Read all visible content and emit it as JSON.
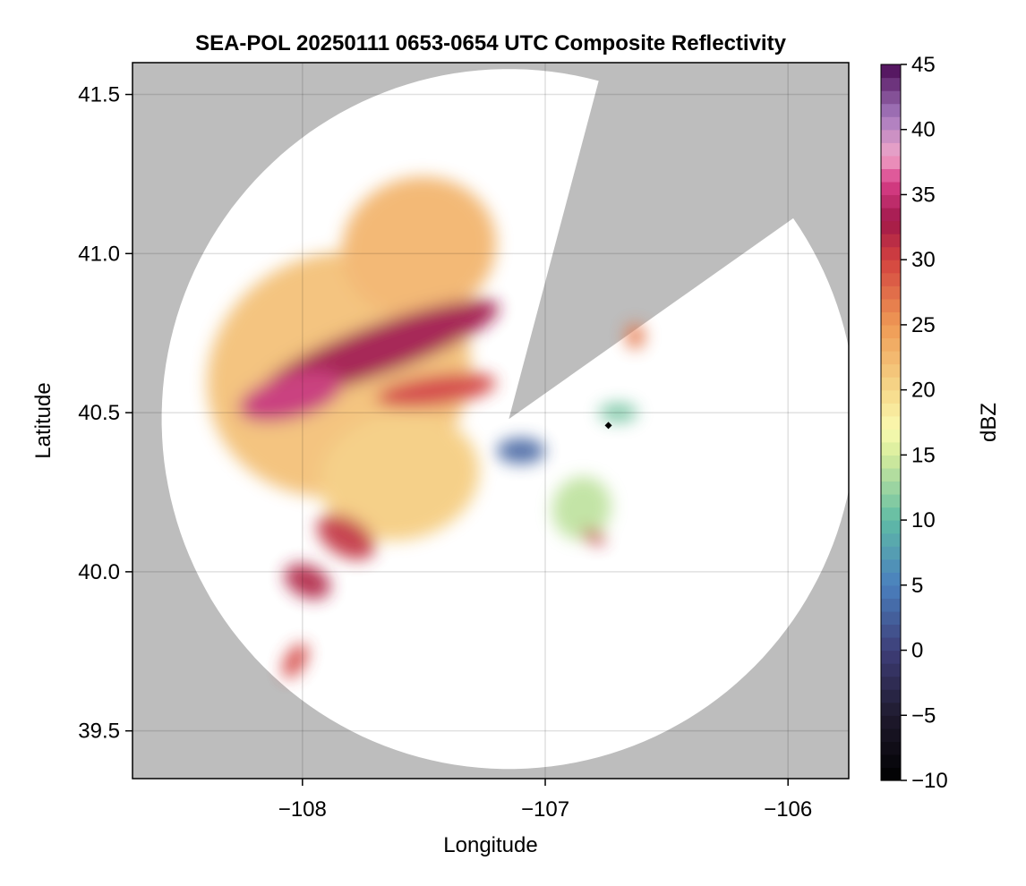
{
  "chart_data": {
    "type": "heatmap",
    "title": "SEA-POL 20250111 0653-0654 UTC Composite Reflectivity",
    "xlabel": "Longitude",
    "ylabel": "Latitude",
    "xlim": [
      -108.7,
      -105.75
    ],
    "ylim": [
      39.35,
      41.6
    ],
    "xticks": [
      -108,
      -107,
      -106
    ],
    "xtick_labels": [
      "−108",
      "−107",
      "−106"
    ],
    "yticks": [
      39.5,
      40.0,
      40.5,
      41.0,
      41.5
    ],
    "ytick_labels": [
      "39.5",
      "40.0",
      "40.5",
      "41.0",
      "41.5"
    ],
    "grid": true,
    "background_color": "#bdbdbd",
    "radar": {
      "center_lon": -107.15,
      "center_lat": 40.48,
      "range_lon": 1.43,
      "range_lat": 1.1,
      "blocked_sectors_deg_from_north": [
        [
          15,
          55
        ]
      ],
      "coverage_color": "#ffffff"
    },
    "marker": {
      "lon": -106.74,
      "lat": 40.46
    },
    "colorbar": {
      "label": "dBZ",
      "min": -10,
      "max": 45,
      "ticks": [
        -10,
        -5,
        0,
        5,
        10,
        15,
        20,
        25,
        30,
        35,
        40,
        45
      ],
      "tick_labels": [
        "−10",
        "−5",
        "0",
        "5",
        "10",
        "15",
        "20",
        "25",
        "30",
        "35",
        "40",
        "45"
      ],
      "colormap": "spectral-extended",
      "stops": [
        {
          "v": -10,
          "c": "#000000"
        },
        {
          "v": -5,
          "c": "#1f1a2e"
        },
        {
          "v": 0,
          "c": "#3e3e78"
        },
        {
          "v": 5,
          "c": "#4a7fbe"
        },
        {
          "v": 10,
          "c": "#5fbba5"
        },
        {
          "v": 15,
          "c": "#d6ec9c"
        },
        {
          "v": 17,
          "c": "#fafab0"
        },
        {
          "v": 20,
          "c": "#f6d88a"
        },
        {
          "v": 25,
          "c": "#ef9a55"
        },
        {
          "v": 30,
          "c": "#d3423f"
        },
        {
          "v": 33,
          "c": "#a0184a"
        },
        {
          "v": 36,
          "c": "#d9408a"
        },
        {
          "v": 38,
          "c": "#f0a6c9"
        },
        {
          "v": 41,
          "c": "#a77bbf"
        },
        {
          "v": 45,
          "c": "#4a0a55"
        }
      ]
    },
    "echo_regions": [
      {
        "name": "main west band",
        "lon": -107.85,
        "lat": 40.62,
        "rx": 0.55,
        "ry": 0.38,
        "rot": -22,
        "dbz": 22
      },
      {
        "name": "north lobe",
        "lon": -107.52,
        "lat": 41.02,
        "rx": 0.32,
        "ry": 0.22,
        "rot": -15,
        "dbz": 23
      },
      {
        "name": "core streak",
        "lon": -107.68,
        "lat": 40.7,
        "rx": 0.52,
        "ry": 0.08,
        "rot": -20,
        "dbz": 33
      },
      {
        "name": "west core",
        "lon": -108.05,
        "lat": 40.55,
        "rx": 0.22,
        "ry": 0.07,
        "rot": -15,
        "dbz": 35
      },
      {
        "name": "inner arc",
        "lon": -107.45,
        "lat": 40.57,
        "rx": 0.25,
        "ry": 0.05,
        "rot": -8,
        "dbz": 30
      },
      {
        "name": "south field",
        "lon": -107.6,
        "lat": 40.3,
        "rx": 0.33,
        "ry": 0.2,
        "rot": -10,
        "dbz": 21
      },
      {
        "name": "southwest cell",
        "lon": -107.82,
        "lat": 40.11,
        "rx": 0.13,
        "ry": 0.06,
        "rot": 30,
        "dbz": 31
      },
      {
        "name": "south cell",
        "lon": -107.98,
        "lat": 39.97,
        "rx": 0.1,
        "ry": 0.05,
        "rot": 25,
        "dbz": 32
      },
      {
        "name": "south tail",
        "lon": -108.03,
        "lat": 39.72,
        "rx": 0.04,
        "ry": 0.06,
        "rot": 30,
        "dbz": 30
      },
      {
        "name": "near-radar weak",
        "lon": -107.1,
        "lat": 40.38,
        "rx": 0.1,
        "ry": 0.04,
        "rot": 0,
        "dbz": 3
      },
      {
        "name": "southeast cell",
        "lon": -106.85,
        "lat": 40.2,
        "rx": 0.12,
        "ry": 0.1,
        "rot": 20,
        "dbz": 14
      },
      {
        "name": "southeast core",
        "lon": -106.8,
        "lat": 40.11,
        "rx": 0.05,
        "ry": 0.02,
        "rot": 25,
        "dbz": 31
      },
      {
        "name": "east cell",
        "lon": -106.7,
        "lat": 40.5,
        "rx": 0.08,
        "ry": 0.03,
        "rot": 0,
        "dbz": 11
      },
      {
        "name": "northeast cell",
        "lon": -106.63,
        "lat": 40.74,
        "rx": 0.04,
        "ry": 0.04,
        "rot": 0,
        "dbz": 27
      }
    ]
  }
}
